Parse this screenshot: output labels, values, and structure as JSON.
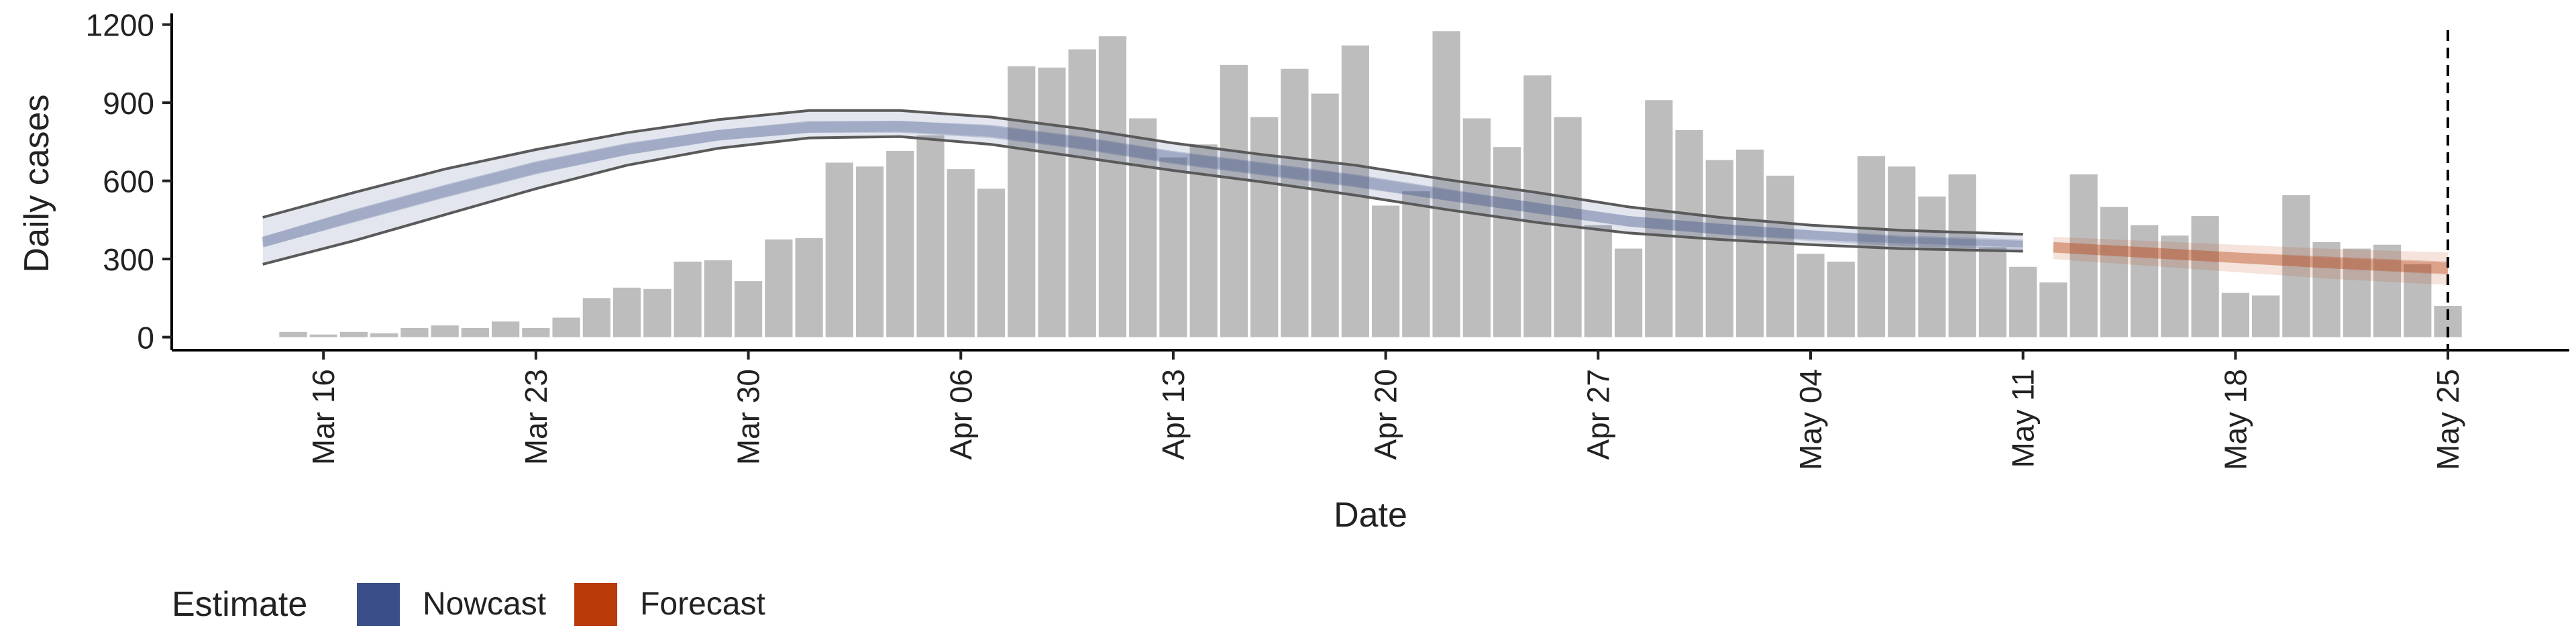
{
  "chart_data": {
    "type": "bar",
    "xlabel": "Date",
    "ylabel": "Daily cases",
    "ylim": [
      -50,
      1230
    ],
    "y_ticks": [
      0,
      300,
      600,
      900,
      1200
    ],
    "x_ticks": [
      {
        "date": "2020-03-16",
        "label": "Mar 16"
      },
      {
        "date": "2020-03-23",
        "label": "Mar 23"
      },
      {
        "date": "2020-03-30",
        "label": "Mar 30"
      },
      {
        "date": "2020-04-06",
        "label": "Apr 06"
      },
      {
        "date": "2020-04-13",
        "label": "Apr 13"
      },
      {
        "date": "2020-04-20",
        "label": "Apr 20"
      },
      {
        "date": "2020-04-27",
        "label": "Apr 27"
      },
      {
        "date": "2020-05-04",
        "label": "May 04"
      },
      {
        "date": "2020-05-11",
        "label": "May 11"
      },
      {
        "date": "2020-05-18",
        "label": "May 18"
      },
      {
        "date": "2020-05-25",
        "label": "May 25"
      }
    ],
    "xlim": [
      "2020-03-11",
      "2020-05-29"
    ],
    "grid": false,
    "vertical_line_date": "2020-05-25",
    "bars": {
      "start_date": "2020-03-15",
      "color": "#bdbdbd",
      "values": [
        20,
        10,
        20,
        15,
        35,
        45,
        35,
        60,
        35,
        75,
        150,
        190,
        185,
        290,
        295,
        215,
        375,
        380,
        670,
        655,
        715,
        775,
        645,
        570,
        1040,
        1035,
        1105,
        1155,
        840,
        690,
        740,
        1045,
        845,
        1030,
        935,
        1120,
        505,
        560,
        1175,
        840,
        730,
        1005,
        845,
        430,
        340,
        910,
        795,
        680,
        720,
        620,
        320,
        290,
        695,
        655,
        540,
        625,
        345,
        270,
        210,
        625,
        500,
        430,
        390,
        465,
        170,
        160,
        545,
        365,
        340,
        355,
        280,
        120
      ]
    },
    "series": [
      {
        "name": "Nowcast",
        "color": "#3a4f87",
        "dates": [
          "2020-03-14",
          "2020-03-17",
          "2020-03-20",
          "2020-03-23",
          "2020-03-26",
          "2020-03-29",
          "2020-04-01",
          "2020-04-04",
          "2020-04-07",
          "2020-04-10",
          "2020-04-13",
          "2020-04-16",
          "2020-04-19",
          "2020-04-22",
          "2020-04-25",
          "2020-04-28",
          "2020-05-01",
          "2020-05-04",
          "2020-05-07",
          "2020-05-11"
        ],
        "median": [
          365,
          465,
          560,
          650,
          720,
          775,
          805,
          810,
          790,
          745,
          690,
          645,
          600,
          545,
          495,
          445,
          415,
          390,
          370,
          355
        ],
        "inner_lower": [
          345,
          440,
          535,
          625,
          700,
          755,
          785,
          785,
          765,
          720,
          665,
          620,
          575,
          525,
          475,
          425,
          395,
          375,
          360,
          345
        ],
        "inner_upper": [
          385,
          490,
          585,
          675,
          745,
          795,
          830,
          830,
          815,
          770,
          715,
          670,
          625,
          570,
          515,
          465,
          435,
          410,
          385,
          370
        ],
        "outer_lower": [
          280,
          370,
          470,
          570,
          660,
          725,
          765,
          770,
          740,
          690,
          640,
          595,
          545,
          490,
          440,
          400,
          375,
          355,
          340,
          330
        ],
        "outer_upper": [
          460,
          555,
          645,
          720,
          785,
          835,
          870,
          870,
          845,
          800,
          745,
          700,
          660,
          605,
          555,
          500,
          460,
          430,
          410,
          395
        ]
      },
      {
        "name": "Forecast",
        "color": "#b83a08",
        "dates": [
          "2020-05-12",
          "2020-05-15",
          "2020-05-18",
          "2020-05-21",
          "2020-05-25"
        ],
        "median": [
          345,
          325,
          305,
          285,
          265
        ],
        "inner_lower": [
          325,
          305,
          285,
          265,
          240
        ],
        "inner_upper": [
          365,
          345,
          325,
          310,
          290
        ],
        "outer_lower": [
          300,
          275,
          250,
          225,
          200
        ],
        "outer_upper": [
          385,
          370,
          355,
          340,
          325
        ]
      }
    ],
    "legend": {
      "title": "Estimate",
      "placement": "bottom-left",
      "entries": [
        {
          "label": "Nowcast",
          "color": "#3a4f87"
        },
        {
          "label": "Forecast",
          "color": "#b83a08"
        }
      ]
    }
  }
}
